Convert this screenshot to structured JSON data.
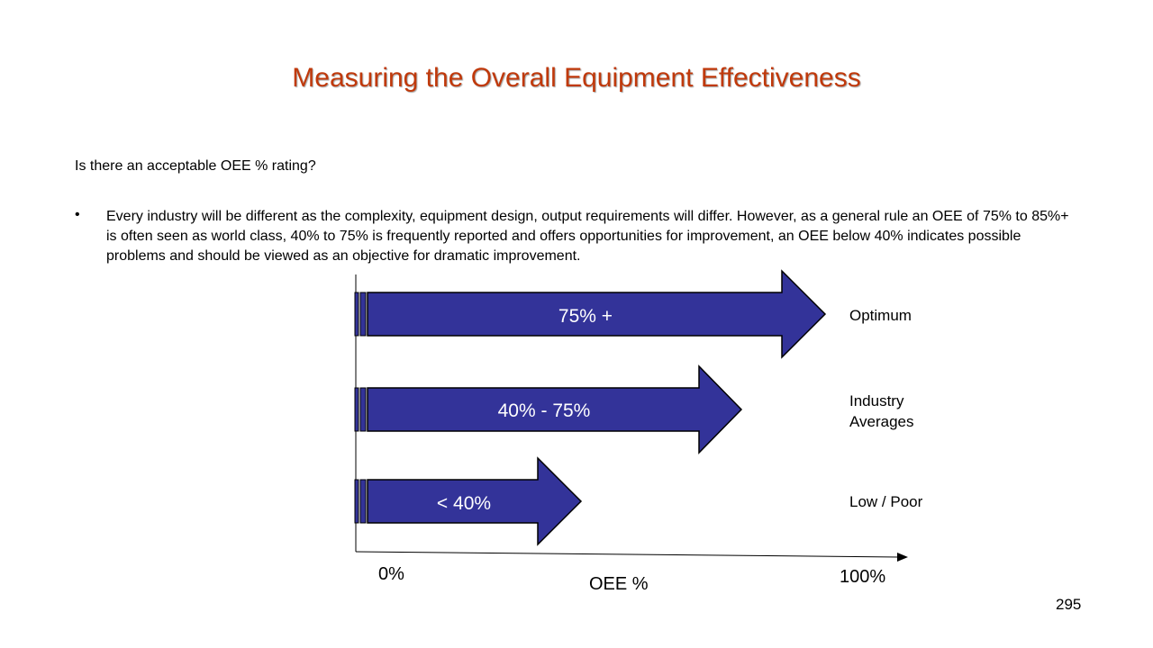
{
  "slide": {
    "title": "Measuring the Overall Equipment Effectiveness",
    "question": "Is there an acceptable OEE % rating?",
    "bullet_marker": "•",
    "bullet_text": "Every industry will be different as the complexity, equipment design, output requirements will differ. However, as a general rule an OEE of 75% to 85%+ is often seen as world class, 40% to 75% is frequently reported and offers opportunities for improvement, an OEE below 40% indicates possible problems and should be viewed as an objective for dramatic improvement.",
    "page_number": "295"
  },
  "diagram": {
    "arrow_color": "#333399",
    "arrows": [
      {
        "label": "75% +",
        "category": "Optimum"
      },
      {
        "label": "40% - 75%",
        "category": "Industry Averages"
      },
      {
        "label": "< 40%",
        "category": "Low / Poor"
      }
    ],
    "axis": {
      "min_label": "0%",
      "max_label": "100%",
      "title": "OEE %"
    }
  },
  "colors": {
    "title": "#c0390b",
    "arrow_fill": "#333399",
    "arrow_outline": "#000000"
  }
}
